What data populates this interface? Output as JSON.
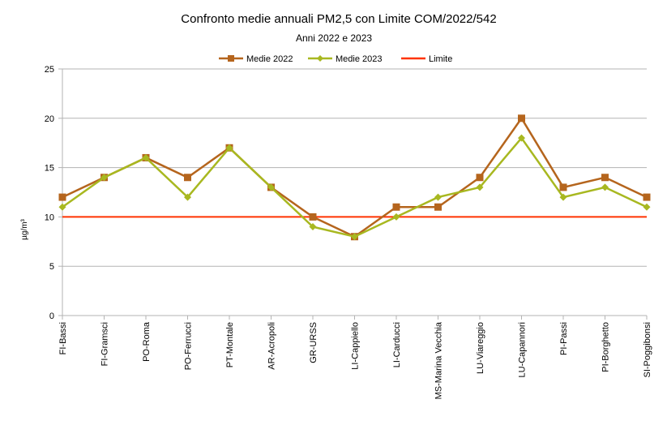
{
  "chart_data": {
    "type": "line",
    "title": "Confronto medie annuali PM2,5 con Limite  COM/2022/542",
    "subtitle": "Anni 2022 e 2023",
    "ylabel": "µg/m³",
    "xlabel": "",
    "ylim": [
      0,
      25
    ],
    "yticks": [
      0,
      5,
      10,
      15,
      20,
      25
    ],
    "grid": true,
    "legend_position": "top",
    "categories": [
      "FI-Bassi",
      "FI-Gramsci",
      "PO-Roma",
      "PO-Ferrucci",
      "PT-Montale",
      "AR-Acropoli",
      "GR-URSS",
      "LI-Cappiello",
      "LI-Carducci",
      "MS-Marina Vecchia",
      "LU-Viareggio",
      "LU-Capannori",
      "PI-Passi",
      "PI-Borghetto",
      "SI-Poggibonsi"
    ],
    "series": [
      {
        "name": "Medie 2022",
        "color": "#b5651d",
        "marker": "square",
        "values": [
          12,
          14,
          16,
          14,
          17,
          13,
          10,
          8,
          11,
          11,
          14,
          20,
          13,
          14,
          12
        ]
      },
      {
        "name": "Medie 2023",
        "color": "#a8b820",
        "marker": "diamond",
        "values": [
          11,
          14,
          16,
          12,
          17,
          13,
          9,
          8,
          10,
          12,
          13,
          18,
          12,
          13,
          11
        ]
      },
      {
        "name": "Limite",
        "color": "#ff3300",
        "marker": "none",
        "values": [
          10,
          10,
          10,
          10,
          10,
          10,
          10,
          10,
          10,
          10,
          10,
          10,
          10,
          10,
          10
        ]
      }
    ]
  }
}
